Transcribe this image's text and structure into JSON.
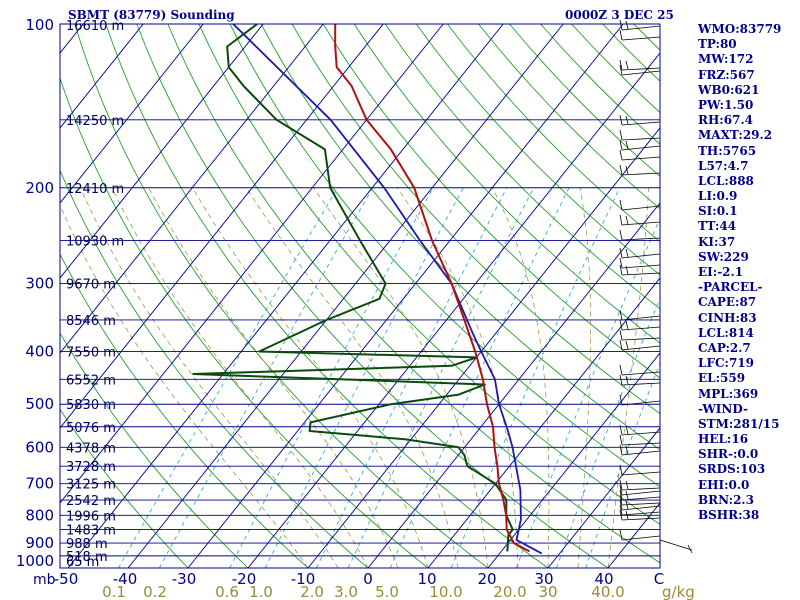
{
  "header": {
    "left": "SBMT (83779) Sounding",
    "right": "0000Z  3 DEC 25"
  },
  "indices": [
    "WMO:83779",
    "TP:80",
    "MW:172",
    "FRZ:567",
    "WB0:621",
    "PW:1.50",
    "RH:67.4",
    "MAXT:29.2",
    "TH:5765",
    "L57:4.7",
    "LCL:888",
    "LI:0.9",
    "SI:0.1",
    "TT:44",
    "KI:37",
    "SW:229",
    "EI:-2.1",
    "-PARCEL-",
    "CAPE:87",
    "CINH:83",
    "LCL:814",
    "CAP:2.7",
    "LFC:719",
    "EL:559",
    "MPL:369",
    "-WIND-",
    "STM:281/15",
    "HEL:16",
    "SHR-:0.0",
    "SRDS:103",
    "EHI:0.0",
    "BRN:2.3",
    "BSHR:38"
  ],
  "colors": {
    "frame": "#00008b",
    "isobar": "#00008b",
    "isotherm": "#00008b",
    "dry_adiabat": "#22a02a",
    "moist_adiabat": "#9a9a4a",
    "mixing_ratio": "#3aaacc",
    "temperature": "#b01010",
    "dewpoint": "#0b4a0b",
    "parcel": "#1a1ab0",
    "axis_text": "#00008b",
    "mixing_text": "#9a8a3a"
  },
  "chart_data": {
    "type": "skew-t",
    "title": "SBMT (83779) Sounding",
    "time_label": "0000Z  3 DEC 25",
    "pressure_range": [
      100,
      1000
    ],
    "pressure_ticks": [
      "100",
      "200",
      "300",
      "400",
      "500",
      "600",
      "700",
      "800",
      "900",
      "1000"
    ],
    "pressure_unit": "mb",
    "temperature_ticks": [
      "-50",
      "-40",
      "-30",
      "-20",
      "-10",
      "0",
      "10",
      "20",
      "30",
      "40",
      "C"
    ],
    "mixing_ratio_ticks": [
      "0.1",
      "0.2",
      "0.6",
      "1.0",
      "2.0",
      "3.0",
      "5.0",
      "10.0",
      "20.0",
      "30",
      "40.0",
      "g/kg"
    ],
    "heights": [
      {
        "label": "16610 m",
        "p": 100
      },
      {
        "label": "14250 m",
        "p": 150
      },
      {
        "label": "12410 m",
        "p": 200
      },
      {
        "label": "10930 m",
        "p": 250
      },
      {
        "label": "9670 m",
        "p": 300
      },
      {
        "label": "8546 m",
        "p": 350
      },
      {
        "label": "7550 m",
        "p": 400
      },
      {
        "label": "6552 m",
        "p": 450
      },
      {
        "label": "5830 m",
        "p": 500
      },
      {
        "label": "5076 m",
        "p": 550
      },
      {
        "label": "4378 m",
        "p": 600
      },
      {
        "label": "3728 m",
        "p": 650
      },
      {
        "label": "3125 m",
        "p": 700
      },
      {
        "label": "2542 m",
        "p": 750
      },
      {
        "label": "1996 m",
        "p": 800
      },
      {
        "label": "1483 m",
        "p": 850
      },
      {
        "label": "988 m",
        "p": 900
      },
      {
        "label": "518 m",
        "p": 950
      },
      {
        "label": "65 m",
        "p": 1000
      }
    ],
    "temperature_profile": [
      {
        "p": 932,
        "t": 24.7
      },
      {
        "p": 900,
        "t": 21.0
      },
      {
        "p": 850,
        "t": 18.0
      },
      {
        "p": 800,
        "t": 16.0
      },
      {
        "p": 750,
        "t": 13.5
      },
      {
        "p": 700,
        "t": 10.6
      },
      {
        "p": 650,
        "t": 8.0
      },
      {
        "p": 600,
        "t": 5.0
      },
      {
        "p": 550,
        "t": 2.0
      },
      {
        "p": 500,
        "t": -2.0
      },
      {
        "p": 450,
        "t": -6.0
      },
      {
        "p": 400,
        "t": -11.0
      },
      {
        "p": 350,
        "t": -17.0
      },
      {
        "p": 300,
        "t": -24.0
      },
      {
        "p": 250,
        "t": -33.0
      },
      {
        "p": 200,
        "t": -43.0
      },
      {
        "p": 170,
        "t": -52.0
      },
      {
        "p": 150,
        "t": -60.0
      },
      {
        "p": 130,
        "t": -67.0
      },
      {
        "p": 120,
        "t": -72.0
      },
      {
        "p": 110,
        "t": -75.0
      },
      {
        "p": 100,
        "t": -78.0
      }
    ],
    "dewpoint_profile": [
      {
        "p": 932,
        "td": 21.0
      },
      {
        "p": 900,
        "td": 20.0
      },
      {
        "p": 870,
        "td": 19.0
      },
      {
        "p": 850,
        "td": 19.0
      },
      {
        "p": 800,
        "td": 16.0
      },
      {
        "p": 750,
        "td": 14.0
      },
      {
        "p": 700,
        "td": 10.0
      },
      {
        "p": 650,
        "td": 3.0
      },
      {
        "p": 620,
        "td": 1.0
      },
      {
        "p": 600,
        "td": -1.0
      },
      {
        "p": 580,
        "td": -11.0
      },
      {
        "p": 560,
        "td": -28.0
      },
      {
        "p": 540,
        "td": -29.0
      },
      {
        "p": 500,
        "td": -18.0
      },
      {
        "p": 480,
        "td": -8.0
      },
      {
        "p": 460,
        "td": -5.0
      },
      {
        "p": 440,
        "td": -55.0
      },
      {
        "p": 425,
        "td": -13.0
      },
      {
        "p": 410,
        "td": -10.0
      },
      {
        "p": 400,
        "td": -47.0
      },
      {
        "p": 350,
        "td": -40.0
      },
      {
        "p": 320,
        "td": -34.0
      },
      {
        "p": 300,
        "td": -35.0
      },
      {
        "p": 250,
        "td": -45.0
      },
      {
        "p": 200,
        "td": -57.0
      },
      {
        "p": 170,
        "td": -63.0
      },
      {
        "p": 150,
        "td": -75.0
      },
      {
        "p": 130,
        "td": -85.0
      },
      {
        "p": 120,
        "td": -90.0
      },
      {
        "p": 110,
        "td": -93.0
      },
      {
        "p": 100,
        "td": -91.0
      }
    ],
    "parcel_profile": [
      {
        "p": 940,
        "t": 27.0
      },
      {
        "p": 888,
        "t": 21.0
      },
      {
        "p": 814,
        "t": 19.0
      },
      {
        "p": 719,
        "t": 15.0
      },
      {
        "p": 600,
        "t": 8.0
      },
      {
        "p": 559,
        "t": 5.0
      },
      {
        "p": 500,
        "t": 0.0
      },
      {
        "p": 450,
        "t": -4.0
      },
      {
        "p": 400,
        "t": -10.0
      },
      {
        "p": 369,
        "t": -14.0
      },
      {
        "p": 300,
        "t": -24.0
      },
      {
        "p": 250,
        "t": -35.0
      },
      {
        "p": 200,
        "t": -48.0
      },
      {
        "p": 150,
        "t": -66.0
      },
      {
        "p": 100,
        "t": -95.0
      }
    ]
  }
}
